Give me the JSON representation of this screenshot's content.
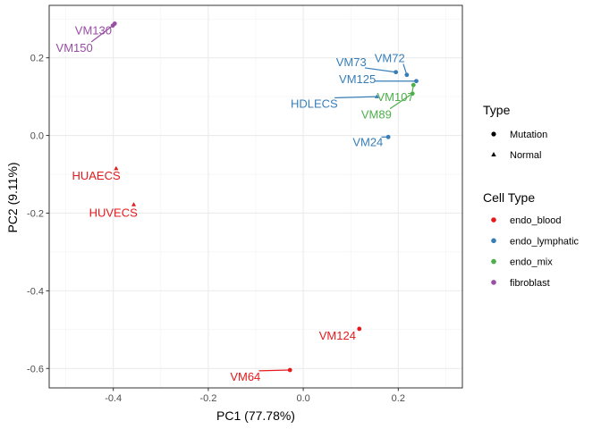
{
  "chart_data": {
    "type": "scatter",
    "title": "",
    "xlabel": "PC1 (77.78%)",
    "ylabel": "PC2 (9.11%)",
    "xlim": [
      -0.535,
      0.335
    ],
    "ylim": [
      -0.65,
      0.335
    ],
    "x_ticks": [
      -0.4,
      -0.2,
      0.0,
      0.2
    ],
    "x_tick_labels": [
      "-0.4",
      "-0.2",
      "0.0",
      "0.2"
    ],
    "y_ticks": [
      -0.6,
      -0.4,
      -0.2,
      0.0,
      0.2
    ],
    "y_tick_labels": [
      "-0.6",
      "-0.4",
      "-0.2",
      "0.0",
      "0.2"
    ],
    "grid": true,
    "legend_placement": "right",
    "legend": {
      "type_title": "Type",
      "type_items": [
        {
          "label": "Mutation",
          "shape": "circle"
        },
        {
          "label": "Normal",
          "shape": "triangle"
        }
      ],
      "cell_title": "Cell Type",
      "cell_items": [
        {
          "label": "endo_blood",
          "color": "#E41A1C"
        },
        {
          "label": "endo_lymphatic",
          "color": "#377EB8"
        },
        {
          "label": "endo_mix",
          "color": "#4DAF4A"
        },
        {
          "label": "fibroblast",
          "color": "#984EA3"
        }
      ]
    },
    "points": [
      {
        "label": "VM130",
        "x": -0.397,
        "y": 0.288,
        "type": "Mutation",
        "cell": "fibroblast",
        "lx": -0.442,
        "ly": 0.271
      },
      {
        "label": "VM150",
        "x": -0.401,
        "y": 0.283,
        "type": "Mutation",
        "cell": "fibroblast",
        "lx": -0.482,
        "ly": 0.226
      },
      {
        "label": "VM72",
        "x": 0.218,
        "y": 0.156,
        "type": "Mutation",
        "cell": "endo_lymphatic",
        "lx": 0.182,
        "ly": 0.199
      },
      {
        "label": "VM73",
        "x": 0.195,
        "y": 0.163,
        "type": "Mutation",
        "cell": "endo_lymphatic",
        "lx": 0.101,
        "ly": 0.189
      },
      {
        "label": "VM125",
        "x": 0.238,
        "y": 0.14,
        "type": "Mutation",
        "cell": "endo_lymphatic",
        "lx": 0.114,
        "ly": 0.145
      },
      {
        "label": "VM107",
        "x": 0.232,
        "y": 0.13,
        "type": "Mutation",
        "cell": "endo_mix",
        "lx": 0.194,
        "ly": 0.099
      },
      {
        "label": "HDLECS",
        "x": 0.155,
        "y": 0.1,
        "type": "Normal",
        "cell": "endo_lymphatic",
        "lx": 0.023,
        "ly": 0.082
      },
      {
        "label": "VM89",
        "x": 0.23,
        "y": 0.108,
        "type": "Mutation",
        "cell": "endo_mix",
        "lx": 0.154,
        "ly": 0.054
      },
      {
        "label": "VM24",
        "x": 0.179,
        "y": -0.004,
        "type": "Mutation",
        "cell": "endo_lymphatic",
        "lx": 0.136,
        "ly": -0.017
      },
      {
        "label": "HUAECS",
        "x": -0.394,
        "y": -0.085,
        "type": "Normal",
        "cell": "endo_blood",
        "lx": -0.436,
        "ly": -0.103
      },
      {
        "label": "HUVECS",
        "x": -0.357,
        "y": -0.178,
        "type": "Normal",
        "cell": "endo_blood",
        "lx": -0.4,
        "ly": -0.199
      },
      {
        "label": "VM124",
        "x": 0.118,
        "y": -0.498,
        "type": "Mutation",
        "cell": "endo_blood",
        "lx": 0.072,
        "ly": -0.515
      },
      {
        "label": "VM64",
        "x": -0.028,
        "y": -0.604,
        "type": "Mutation",
        "cell": "endo_blood",
        "lx": -0.122,
        "ly": -0.621
      }
    ]
  }
}
